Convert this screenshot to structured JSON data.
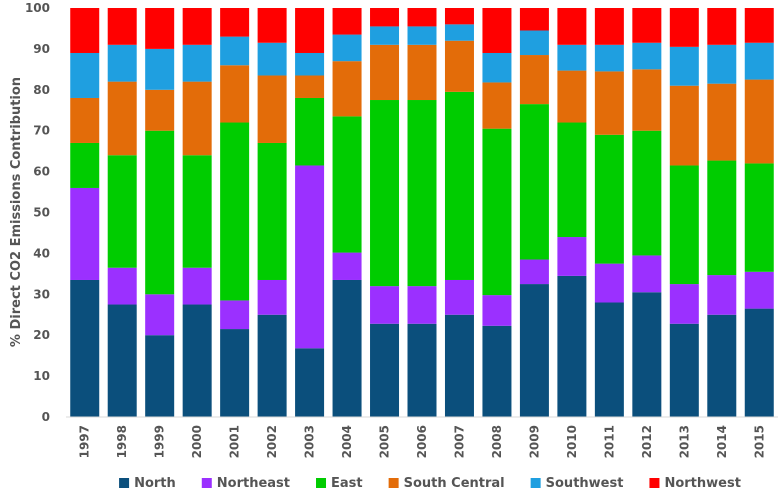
{
  "chart_data": {
    "type": "bar",
    "stacked": true,
    "title": "",
    "xlabel": "",
    "ylabel": "% Direct CO2 Emissions Contribution",
    "ylim": [
      0,
      100
    ],
    "yticks": [
      0,
      10,
      20,
      30,
      40,
      50,
      60,
      70,
      80,
      90,
      100
    ],
    "grid": false,
    "legend_position": "bottom",
    "categories": [
      "1997",
      "1998",
      "1999",
      "2000",
      "2001",
      "2002",
      "2003",
      "2004",
      "2005",
      "2006",
      "2007",
      "2008",
      "2009",
      "2010",
      "2011",
      "2012",
      "2013",
      "2014",
      "2015"
    ],
    "series": [
      {
        "name": "North",
        "color": "#0b4f7c",
        "values": [
          33.5,
          27.5,
          20,
          27.5,
          21.5,
          25,
          16.8,
          33.5,
          22.8,
          22.8,
          25,
          22.3,
          32.5,
          34.5,
          28,
          30.5,
          22.8,
          25,
          26.5
        ]
      },
      {
        "name": "Northeast",
        "color": "#9b30ff",
        "values": [
          22.5,
          9,
          10,
          9,
          7,
          8.5,
          44.7,
          6.7,
          9.2,
          9.2,
          8.5,
          7.5,
          6,
          9.5,
          9.5,
          9,
          9.7,
          9.7,
          9
        ]
      },
      {
        "name": "East",
        "color": "#00cc00",
        "values": [
          11,
          27.5,
          40,
          27.5,
          43.5,
          33.5,
          16.5,
          33.3,
          45.5,
          45.5,
          46,
          40.7,
          38,
          28,
          31.5,
          30.5,
          29,
          28,
          26.5
        ]
      },
      {
        "name": "South Central",
        "color": "#e36c09",
        "values": [
          11,
          18,
          10,
          18,
          14,
          16.5,
          5.5,
          13.5,
          13.5,
          13.5,
          12.5,
          11.3,
          12,
          12.7,
          15.5,
          15,
          19.5,
          18.8,
          20.5
        ]
      },
      {
        "name": "Southwest",
        "color": "#1f9fe0",
        "values": [
          11,
          9,
          10,
          9,
          7,
          8,
          5.5,
          6.5,
          4.5,
          4.5,
          4,
          7.2,
          6,
          6.3,
          6.5,
          6.5,
          9.5,
          9.5,
          9
        ]
      },
      {
        "name": "Northwest",
        "color": "#ff0000",
        "values": [
          11,
          9,
          10,
          9,
          7,
          8.5,
          11,
          6.5,
          4.5,
          4.5,
          4,
          11,
          5.5,
          9,
          9,
          8.5,
          9.5,
          9,
          8.5
        ]
      }
    ]
  }
}
